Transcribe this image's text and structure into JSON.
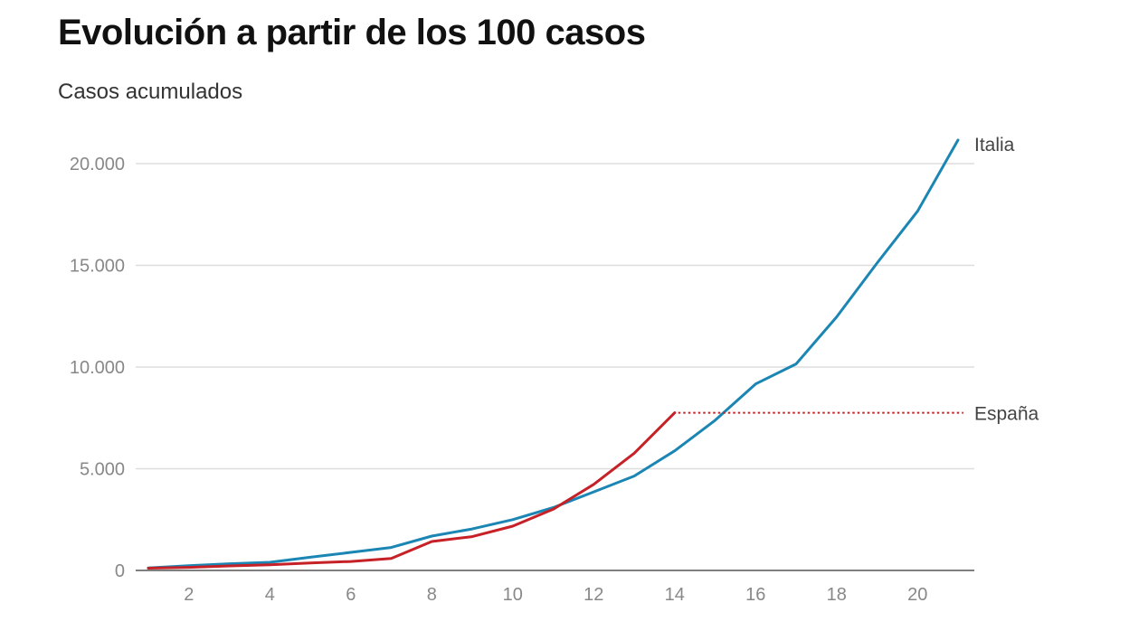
{
  "chart_data": {
    "type": "line",
    "title": "Evolución a partir de los 100 casos",
    "subtitle": "Casos acumulados",
    "xlabel": "",
    "ylabel": "Casos acumulados",
    "xlim": [
      0.5,
      21.4
    ],
    "ylim": [
      0,
      20000
    ],
    "x_ticks": [
      2,
      4,
      6,
      8,
      10,
      12,
      14,
      16,
      18,
      20
    ],
    "y_ticks": [
      {
        "value": 0,
        "label": "0"
      },
      {
        "value": 5000,
        "label": "5.000"
      },
      {
        "value": 10000,
        "label": "10.000"
      },
      {
        "value": 15000,
        "label": "15.000"
      },
      {
        "value": 20000,
        "label": "20.000"
      }
    ],
    "grid": true,
    "series": [
      {
        "name": "Italia",
        "color": "#1b86b4",
        "x": [
          1,
          2,
          3,
          4,
          5,
          6,
          7,
          8,
          9,
          10,
          11,
          12,
          13,
          14,
          15,
          16,
          17,
          18,
          19,
          20,
          21
        ],
        "values": [
          120,
          230,
          330,
          400,
          650,
          890,
          1130,
          1690,
          2040,
          2500,
          3090,
          3860,
          4640,
          5880,
          7380,
          9170,
          10150,
          12460,
          15110,
          17660,
          21160
        ]
      },
      {
        "name": "España",
        "color": "#c62127",
        "x": [
          1,
          2,
          3,
          4,
          5,
          6,
          7,
          8,
          9,
          10,
          11,
          12,
          13,
          14
        ],
        "values": [
          110,
          150,
          220,
          280,
          370,
          440,
          590,
          1420,
          1660,
          2180,
          3010,
          4230,
          5760,
          7750
        ],
        "extension_to_x": 21.4,
        "extension_style": "dotted"
      }
    ]
  }
}
